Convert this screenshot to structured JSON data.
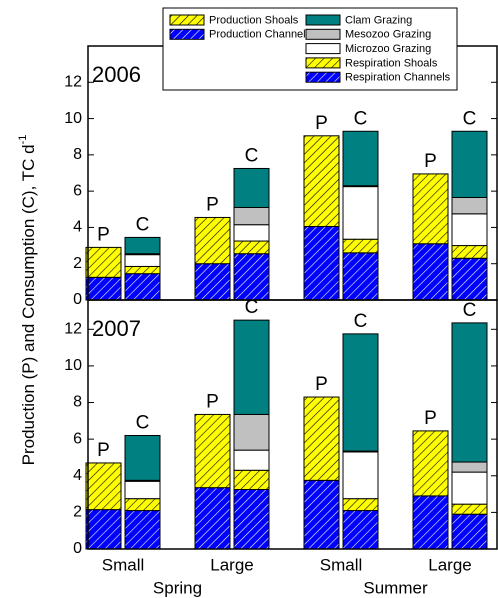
{
  "chart_data": {
    "type": "stacked-bar",
    "ylabel": "Production (P) and Consumption (C), TC d",
    "ylabel_sup": "-1",
    "categories": [
      "Small",
      "Large",
      "Small",
      "Large"
    ],
    "groups": [
      "Spring",
      "Summer"
    ],
    "bar_labels": [
      "P",
      "C"
    ],
    "series": [
      {
        "name": "Production Shoals",
        "color": "#ffff00",
        "hatch": true,
        "stack": 0
      },
      {
        "name": "Production Channels",
        "color": "#0000ff",
        "hatch": true,
        "stack": 0
      },
      {
        "name": "Clam Grazing",
        "color": "#008080",
        "hatch": false,
        "stack": 1
      },
      {
        "name": "Mesozoo Grazing",
        "color": "#c0c0c0",
        "hatch": false,
        "stack": 1
      },
      {
        "name": "Microzoo Grazing",
        "color": "#ffffff",
        "hatch": false,
        "stack": 1
      },
      {
        "name": "Respiration Shoals",
        "color": "#ffff00",
        "hatch": true,
        "stack": 1
      },
      {
        "name": "Respiration Channels",
        "color": "#0000ff",
        "hatch": true,
        "stack": 1
      }
    ],
    "panels": [
      {
        "label": "2006",
        "ylim": [
          0,
          14
        ],
        "yticks": [
          0,
          2,
          4,
          6,
          8,
          10,
          12
        ],
        "values": [
          [
            1.65,
            2.55,
            5.0,
            3.85
          ],
          [
            1.25,
            2.0,
            4.05,
            3.1
          ],
          [
            0.9,
            2.15,
            3.0,
            3.65
          ],
          [
            0.05,
            0.95,
            0.05,
            0.9
          ],
          [
            0.65,
            0.9,
            2.9,
            1.75
          ],
          [
            0.4,
            0.7,
            0.75,
            0.7
          ],
          [
            1.45,
            2.55,
            2.6,
            2.3
          ]
        ]
      },
      {
        "label": "2007",
        "ylim": [
          0,
          13.6
        ],
        "yticks": [
          0,
          2,
          4,
          6,
          8,
          10,
          12
        ],
        "values": [
          [
            2.55,
            4.0,
            4.55,
            3.55
          ],
          [
            2.15,
            3.35,
            3.75,
            2.9
          ],
          [
            2.45,
            5.15,
            6.4,
            7.6
          ],
          [
            0.05,
            1.95,
            0.05,
            0.55
          ],
          [
            0.95,
            1.1,
            2.55,
            1.75
          ],
          [
            0.65,
            1.05,
            0.65,
            0.55
          ],
          [
            2.1,
            3.25,
            2.1,
            1.9
          ]
        ]
      }
    ]
  }
}
